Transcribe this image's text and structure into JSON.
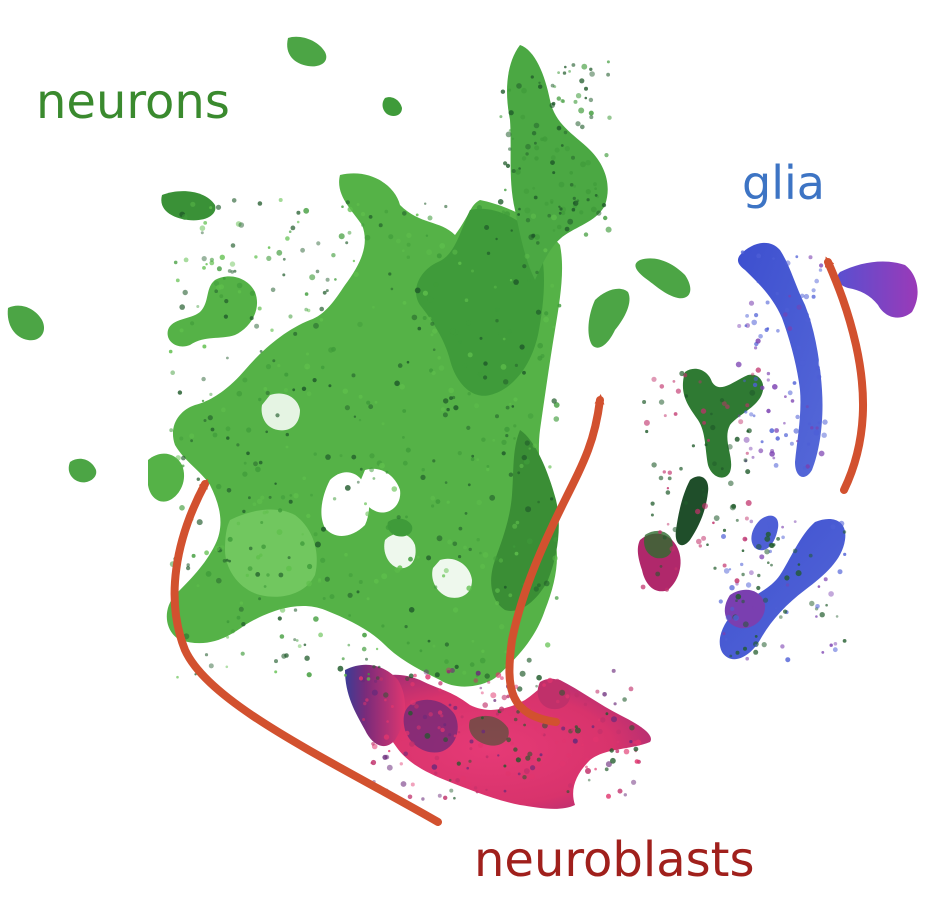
{
  "labels": {
    "neurons": "neurons",
    "glia": "glia",
    "neuroblasts": "neuroblasts"
  },
  "colors": {
    "neurons_text": "#3a8a2e",
    "glia_text": "#3d74c4",
    "neuroblasts_text": "#a0201c",
    "arrow": "#d2512f",
    "neuron_light": "#5fbf4c",
    "neuron_mid": "#3f9b3a",
    "neuron_dark": "#1f5a2a",
    "neuroblast_pink": "#e0356e",
    "neuroblast_magenta": "#c0306a",
    "neuroblast_purple": "#6a2a7a",
    "glia_blue": "#4e5fd6",
    "glia_purple": "#7a3fb0"
  }
}
